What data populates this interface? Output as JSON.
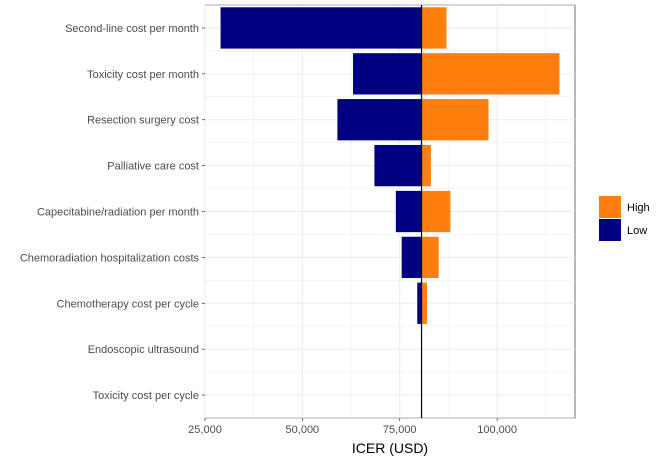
{
  "chart_data": {
    "type": "bar",
    "subtype": "tornado",
    "title": "",
    "xlabel": "ICER (USD)",
    "ylabel": "",
    "xlim": [
      25000,
      120000
    ],
    "baseline": 80600,
    "x_ticks": [
      25000,
      50000,
      75000,
      100000
    ],
    "x_tick_labels": [
      "25,000",
      "50,000",
      "75,000",
      "100,000"
    ],
    "grid": true,
    "legend_position": "right",
    "categories": [
      "Second-line cost per month",
      "Toxicity cost per month",
      "Resection surgery cost",
      "Palliative care cost",
      "Capecitabine/radiation per month",
      "Chemoradiation hospitalization costs",
      "Chemotherapy cost per cycle",
      "Endoscopic ultrasound",
      "Toxicity cost per cycle"
    ],
    "series": [
      {
        "name": "High",
        "color": "#FF7F0E",
        "values": [
          87000,
          116000,
          97800,
          83000,
          88000,
          85000,
          82000,
          80600,
          80600
        ]
      },
      {
        "name": "Low",
        "color": "#000080",
        "values": [
          29000,
          63000,
          59000,
          68500,
          74000,
          75500,
          79500,
          80600,
          80600
        ]
      }
    ]
  }
}
